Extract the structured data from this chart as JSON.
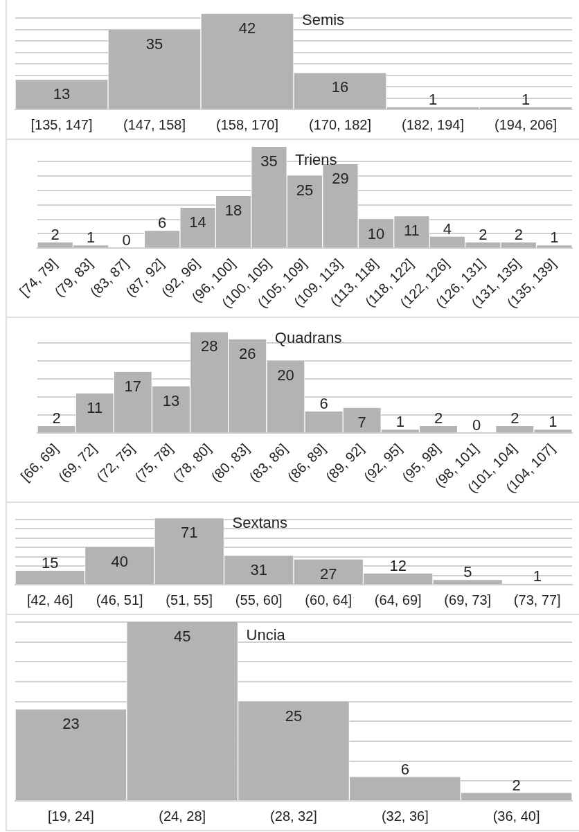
{
  "chart_data": [
    {
      "type": "bar",
      "title": "Semis",
      "categories": [
        "[135, 147]",
        "(147, 158]",
        "(158, 170]",
        "(170, 182]",
        "(182, 194]",
        "(194, 206]"
      ],
      "values": [
        13,
        35,
        42,
        16,
        1,
        1
      ],
      "color": "#b3b3b3",
      "data_labels": true,
      "grid": "y",
      "tick_labels": "x",
      "yticks": [
        {
          "value": 0,
          "label": null
        },
        {
          "value": 5,
          "label": null
        },
        {
          "value": 10,
          "label": null
        },
        {
          "value": 15,
          "label": null
        },
        {
          "value": 20,
          "label": null
        },
        {
          "value": 25,
          "label": null
        },
        {
          "value": 30,
          "label": null
        },
        {
          "value": 35,
          "label": null
        },
        {
          "value": 40,
          "label": null
        }
      ]
    },
    {
      "type": "bar",
      "title": "Triens",
      "categories": [
        "[74, 79]",
        "(79, 83]",
        "(83, 87]",
        "(87, 92]",
        "(92, 96]",
        "(96, 100]",
        "(100, 105]",
        "(105, 109]",
        "(109, 113]",
        "(113, 118]",
        "(118, 122]",
        "(122, 126]",
        "(126, 131]",
        "(131, 135]",
        "(135, 139]"
      ],
      "values": [
        2,
        1,
        0,
        6,
        14,
        18,
        35,
        25,
        29,
        10,
        11,
        4,
        2,
        2,
        1
      ],
      "color": "#b3b3b3",
      "data_labels": true,
      "grid": "y",
      "tick_labels": "x",
      "yticks": [
        {
          "value": 0,
          "label": null
        },
        {
          "value": 5,
          "label": null
        },
        {
          "value": 10,
          "label": null
        },
        {
          "value": 15,
          "label": null
        },
        {
          "value": 20,
          "label": null
        },
        {
          "value": 25,
          "label": null
        },
        {
          "value": 30,
          "label": null
        }
      ]
    },
    {
      "type": "bar",
      "title": "Quadrans",
      "categories": [
        "[66, 69]",
        "(69, 72]",
        "(72, 75]",
        "(75, 78]",
        "(78, 80]",
        "(80, 83]",
        "(83, 86]",
        "(86, 89]",
        "(89, 92]",
        "(92, 95]",
        "(95, 98]",
        "(98, 101]",
        "(101, 104]",
        "(104, 107]"
      ],
      "values": [
        2,
        11,
        17,
        13,
        28,
        26,
        20,
        6,
        7,
        1,
        2,
        0,
        2,
        1
      ],
      "color": "#b3b3b3",
      "data_labels": true,
      "grid": "y",
      "tick_labels": "x",
      "yticks": [
        {
          "value": 0,
          "label": null
        },
        {
          "value": 5,
          "label": null
        },
        {
          "value": 10,
          "label": null
        },
        {
          "value": 15,
          "label": null
        },
        {
          "value": 20,
          "label": null
        },
        {
          "value": 25,
          "label": null
        }
      ]
    },
    {
      "type": "bar",
      "title": "Sextans",
      "categories": [
        "[42, 46]",
        "(46, 51]",
        "(51, 55]",
        "(55, 60]",
        "(60, 64]",
        "(64, 69]",
        "(69, 73]",
        "(73, 77]"
      ],
      "values": [
        15,
        40,
        71,
        31,
        27,
        12,
        5,
        1
      ],
      "color": "#b3b3b3",
      "data_labels": true,
      "grid": "y",
      "tick_labels": "x",
      "yticks": [
        {
          "value": 0,
          "label": null
        },
        {
          "value": 10,
          "label": null
        },
        {
          "value": 20,
          "label": null
        },
        {
          "value": 30,
          "label": null
        },
        {
          "value": 40,
          "label": null
        },
        {
          "value": 50,
          "label": null
        },
        {
          "value": 60,
          "label": null
        },
        {
          "value": 70,
          "label": null
        }
      ]
    },
    {
      "type": "bar",
      "title": "Uncia",
      "categories": [
        "[19, 24]",
        "(24, 28]",
        "(28, 32]",
        "(32, 36]",
        "(36, 40]"
      ],
      "values": [
        23,
        45,
        25,
        6,
        2
      ],
      "color": "#b3b3b3",
      "data_labels": true,
      "grid": "y",
      "tick_labels": "x",
      "yticks": [
        {
          "value": 0,
          "label": null
        },
        {
          "value": 5,
          "label": null
        },
        {
          "value": 10,
          "label": null
        },
        {
          "value": 15,
          "label": null
        },
        {
          "value": 20,
          "label": null
        },
        {
          "value": 25,
          "label": null
        },
        {
          "value": 30,
          "label": null
        },
        {
          "value": 35,
          "label": null
        },
        {
          "value": 40,
          "label": null
        },
        {
          "value": 45,
          "label": null
        }
      ]
    }
  ]
}
